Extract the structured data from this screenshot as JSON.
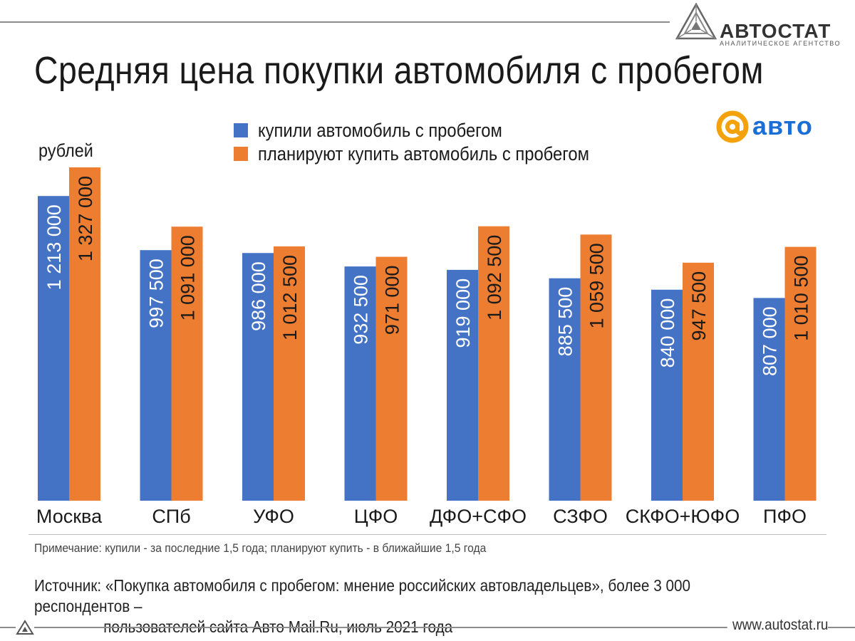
{
  "title": "Средняя цена покупки автомобиля с пробегом",
  "unit_label": "рублей",
  "brand": {
    "name": "АВТОСТАТ",
    "subtitle": "АНАЛИТИЧЕСКОЕ АГЕНТСТВО"
  },
  "partner": {
    "name": "авто",
    "symbol": "@"
  },
  "colors": {
    "bought": "#4472c4",
    "planning": "#ed7d31",
    "rule": "#8c8c8c"
  },
  "chart_data": {
    "type": "bar",
    "title": "Средняя цена покупки автомобиля с пробегом",
    "ylabel": "рублей",
    "xlabel": "",
    "ylim": [
      0,
      1400000
    ],
    "grid": false,
    "legend_position": "top-center",
    "categories": [
      "Москва",
      "СПб",
      "УФО",
      "ЦФО",
      "ДФО+СФО",
      "СЗФО",
      "СКФО+ЮФО",
      "ПФО"
    ],
    "series": [
      {
        "name": "купили автомобиль с пробегом",
        "color": "#4472c4",
        "values": [
          1213000,
          997500,
          986000,
          932500,
          919000,
          885500,
          840000,
          807000
        ],
        "labels": [
          "1 213 000",
          "997 500",
          "986 000",
          "932 500",
          "919 000",
          "885 500",
          "840 000",
          "807 000"
        ]
      },
      {
        "name": "планируют купить автомобиль с пробегом",
        "color": "#ed7d31",
        "values": [
          1327000,
          1091000,
          1012500,
          971000,
          1092500,
          1059500,
          947500,
          1010500
        ],
        "labels": [
          "1 327 000",
          "1 091 000",
          "1 012 500",
          "971 000",
          "1 092 500",
          "1 059 500",
          "947 500",
          "1 010 500"
        ]
      }
    ]
  },
  "note": "Примечание: купили - за последние 1,5 года; планируют купить - в ближайшие 1,5 года",
  "source": {
    "line1": "Источник: «Покупка автомобиля с пробегом: мнение российских автовладельцев», более 3 000 респондентов –",
    "line2": "пользователей сайта Авто Mail.Ru, июль 2021 года"
  },
  "footer_url": "www.autostat.ru"
}
